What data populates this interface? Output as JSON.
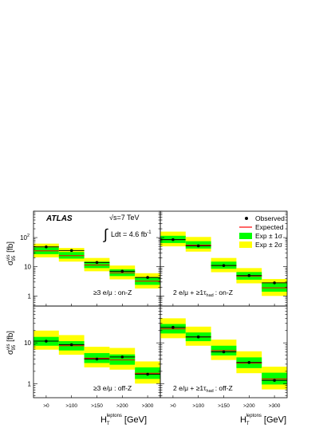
{
  "figure": {
    "experiment": "ATLAS",
    "energy": "√s=7 TeV",
    "luminosity_int": "∫",
    "luminosity": "Ldt = 4.6 fb",
    "luminosity_exp": "-1",
    "ylabel_main": "σ",
    "ylabel_sup": "vis",
    "ylabel_sub": "95",
    "ylabel_unit": "[fb]",
    "xlabel_main": "H",
    "xlabel_sub": "T",
    "xlabel_sup": "leptons",
    "xlabel_unit": "[GeV]",
    "ytick_labels": {
      "top": [
        "1",
        "10",
        "10"
      ],
      "top_exp": "2",
      "bottom": [
        "1",
        "10"
      ]
    },
    "legend": [
      {
        "label": "Observed",
        "kind": "point"
      },
      {
        "label": "Expected",
        "kind": "line"
      },
      {
        "label": "Exp ± 1σ",
        "kind": "band1"
      },
      {
        "label": "Exp ± 2σ",
        "kind": "band2"
      }
    ],
    "colors": {
      "band1": "#00ff00",
      "band2": "#ffff00",
      "expected": "#ff0000",
      "observed": "#000000"
    }
  },
  "chart_data": [
    {
      "type": "bar",
      "label": "≥3 e/μ : on-Z",
      "categories": [
        ">0",
        ">100",
        ">150",
        ">200",
        ">300"
      ],
      "observed": [
        48,
        36,
        14,
        7,
        4.3
      ],
      "expected": [
        35,
        24,
        11.5,
        6.2,
        3.2
      ],
      "band1": [
        [
          27,
          46
        ],
        [
          19,
          32
        ],
        [
          9,
          15
        ],
        [
          4.8,
          8.2
        ],
        [
          2.4,
          4.3
        ]
      ],
      "band2": [
        [
          21,
          62
        ],
        [
          15,
          44
        ],
        [
          7,
          20
        ],
        [
          3.7,
          11
        ],
        [
          1.8,
          6
        ]
      ],
      "yscale": "log",
      "ylim": [
        0.45,
        900
      ]
    },
    {
      "type": "bar",
      "label": "2 e/μ + ≥1τ",
      "label_sub": "had",
      "label_tail": ": on-Z",
      "categories": [
        ">0",
        ">100",
        ">150",
        ">200",
        ">300"
      ],
      "observed": [
        85,
        52,
        11,
        5,
        2.8
      ],
      "expected": [
        85,
        55,
        11,
        4.8,
        1.9
      ],
      "band1": [
        [
          65,
          115
        ],
        [
          42,
          75
        ],
        [
          8.5,
          15
        ],
        [
          3.6,
          6.6
        ],
        [
          1.4,
          2.7
        ]
      ],
      "band2": [
        [
          50,
          160
        ],
        [
          33,
          105
        ],
        [
          6.5,
          20
        ],
        [
          2.7,
          9
        ],
        [
          1.0,
          3.8
        ]
      ],
      "yscale": "log",
      "ylim": [
        0.45,
        900
      ]
    },
    {
      "type": "bar",
      "label": "≥3 e/μ : off-Z",
      "categories": [
        ">0",
        ">100",
        ">150",
        ">200",
        ">300"
      ],
      "observed": [
        11,
        9,
        4,
        4.5,
        1.7
      ],
      "expected": [
        11,
        8.5,
        4.2,
        3.8,
        1.8
      ],
      "band1": [
        [
          8.5,
          14
        ],
        [
          6.5,
          11
        ],
        [
          3.2,
          5.6
        ],
        [
          2.9,
          5.2
        ],
        [
          1.3,
          2.5
        ]
      ],
      "band2": [
        [
          6.8,
          20
        ],
        [
          5.1,
          15.5
        ],
        [
          2.5,
          8
        ],
        [
          2.2,
          7.5
        ],
        [
          1.0,
          3.5
        ]
      ],
      "yscale": "log",
      "ylim": [
        0.45,
        100
      ]
    },
    {
      "type": "bar",
      "label": "2 e/μ + ≥1τ",
      "label_sub": "had",
      "label_tail": ": off-Z",
      "categories": [
        ">0",
        ">100",
        ">150",
        ">200",
        ">300"
      ],
      "observed": [
        24,
        14,
        6,
        3.3,
        1.2
      ],
      "expected": [
        22,
        14,
        6.5,
        3.2,
        1.3
      ],
      "band1": [
        [
          17,
          29
        ],
        [
          11,
          18
        ],
        [
          4.9,
          8.5
        ],
        [
          2.4,
          4.4
        ],
        [
          0.95,
          1.85
        ]
      ],
      "band2": [
        [
          13,
          40
        ],
        [
          8.5,
          25
        ],
        [
          3.8,
          12
        ],
        [
          1.8,
          6.2
        ],
        [
          0.72,
          2.6
        ]
      ],
      "yscale": "log",
      "ylim": [
        0.45,
        100
      ]
    }
  ]
}
